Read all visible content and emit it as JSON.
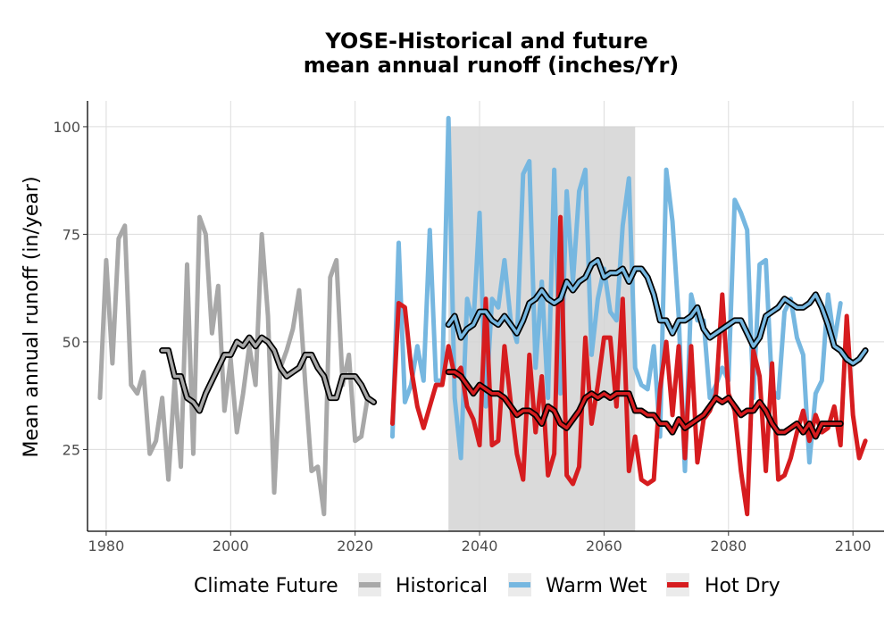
{
  "chart_data": {
    "type": "line",
    "title_line1": "YOSE-Historical and future",
    "title_line2": "mean annual runoff (inches/Yr)",
    "xlabel": "",
    "ylabel": "Mean annual runoff (in/year)",
    "xlim": [
      1977,
      2105
    ],
    "ylim": [
      6,
      106
    ],
    "x_ticks": [
      1980,
      2000,
      2020,
      2040,
      2060,
      2080,
      2100
    ],
    "y_ticks": [
      25,
      50,
      75,
      100
    ],
    "grid": true,
    "shaded_region": {
      "x_start": 2035,
      "x_end": 2065,
      "y_top": 100
    },
    "legend": {
      "title": "Climate Future",
      "position": "bottom",
      "entries": [
        {
          "label": "Historical",
          "color": "#a8a8a8"
        },
        {
          "label": "Warm Wet",
          "color": "#76b7e0"
        },
        {
          "label": "Hot Dry",
          "color": "#d61c1f"
        }
      ]
    },
    "series": [
      {
        "name": "Historical",
        "kind": "annual",
        "color": "#a8a8a8",
        "x_start": 1979,
        "values": [
          37,
          69,
          45,
          74,
          77,
          40,
          38,
          43,
          24,
          27,
          37,
          18,
          41,
          21,
          68,
          24,
          79,
          75,
          52,
          63,
          34,
          46,
          29,
          38,
          49,
          40,
          75,
          56,
          15,
          44,
          48,
          53,
          62,
          40,
          20,
          21,
          10,
          65,
          69,
          40,
          47,
          27,
          28,
          37
        ]
      },
      {
        "name": "Historical",
        "kind": "moving-average",
        "color": "#a8a8a8",
        "x_start": 1989,
        "values": [
          48,
          48,
          42,
          42,
          37,
          36,
          34,
          38,
          41,
          44,
          47,
          47,
          50,
          49,
          51,
          49,
          51,
          50,
          48,
          44,
          42,
          43,
          44,
          47,
          47,
          44,
          42,
          37,
          37,
          42,
          42,
          42,
          40,
          37,
          36
        ]
      },
      {
        "name": "Warm Wet",
        "kind": "annual",
        "color": "#76b7e0",
        "x_start": 2026,
        "values": [
          28,
          73,
          36,
          40,
          49,
          41,
          76,
          41,
          41,
          102,
          37,
          23,
          60,
          54,
          80,
          35,
          60,
          58,
          69,
          55,
          50,
          89,
          92,
          44,
          64,
          37,
          90,
          38,
          85,
          64,
          85,
          90,
          47,
          60,
          67,
          57,
          55,
          77,
          88,
          44,
          40,
          39,
          49,
          28,
          90,
          78,
          56,
          20,
          61,
          55,
          55,
          37,
          40,
          44,
          41,
          83,
          80,
          76,
          37,
          68,
          69,
          39,
          37,
          57,
          60,
          51,
          47,
          22,
          38,
          41,
          61,
          50,
          59
        ]
      },
      {
        "name": "Warm Wet",
        "kind": "moving-average",
        "color": "#76b7e0",
        "x_start": 2035,
        "values": [
          54,
          56,
          51,
          53,
          54,
          57,
          57,
          55,
          54,
          56,
          54,
          52,
          55,
          59,
          60,
          62,
          60,
          59,
          60,
          64,
          62,
          64,
          65,
          68,
          69,
          65,
          66,
          66,
          67,
          64,
          67,
          67,
          65,
          61,
          55,
          55,
          52,
          55,
          55,
          56,
          58,
          53,
          51,
          52,
          53,
          54,
          55,
          55,
          52,
          49,
          51,
          56,
          57,
          58,
          60,
          59,
          58,
          58,
          59,
          61,
          58,
          54,
          49,
          48,
          46,
          45,
          46,
          48
        ]
      },
      {
        "name": "Hot Dry",
        "kind": "annual",
        "color": "#d61c1f",
        "x_start": 2026,
        "values": [
          31,
          59,
          58,
          44,
          35,
          30,
          35,
          40,
          40,
          49,
          42,
          44,
          35,
          32,
          26,
          60,
          26,
          27,
          49,
          36,
          24,
          18,
          47,
          29,
          42,
          19,
          24,
          79,
          19,
          17,
          21,
          51,
          31,
          40,
          51,
          51,
          35,
          60,
          20,
          28,
          18,
          17,
          18,
          39,
          50,
          33,
          49,
          23,
          49,
          22,
          32,
          34,
          38,
          61,
          38,
          34,
          20,
          10,
          48,
          42,
          20,
          45,
          18,
          19,
          23,
          29,
          34,
          27,
          33,
          29,
          30,
          35,
          26,
          56,
          33,
          23,
          27
        ]
      },
      {
        "name": "Hot Dry",
        "kind": "moving-average",
        "color": "#d61c1f",
        "x_start": 2035,
        "values": [
          43,
          43,
          42,
          40,
          38,
          40,
          39,
          38,
          38,
          37,
          35,
          33,
          34,
          34,
          33,
          31,
          35,
          34,
          31,
          30,
          32,
          34,
          37,
          38,
          37,
          38,
          37,
          38,
          38,
          38,
          34,
          34,
          33,
          33,
          31,
          31,
          29,
          32,
          30,
          31,
          32,
          33,
          35,
          37,
          36,
          37,
          35,
          33,
          34,
          34,
          36,
          34,
          31,
          29,
          29,
          30,
          31,
          29,
          31,
          28,
          31,
          31,
          31,
          31
        ]
      }
    ]
  }
}
